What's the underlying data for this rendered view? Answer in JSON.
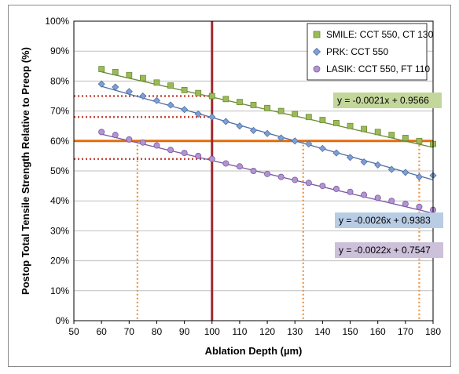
{
  "chart_data": {
    "type": "scatter",
    "xlabel": "Ablation Depth (µm)",
    "ylabel": "Postop Total Tensile Strength Relative to Preop (%)",
    "xlim": [
      50,
      180
    ],
    "ylim": [
      0,
      100
    ],
    "x_ticks": [
      "50",
      "60",
      "70",
      "80",
      "90",
      "100",
      "110",
      "120",
      "130",
      "140",
      "150",
      "160",
      "170",
      "180"
    ],
    "y_ticks": [
      "0%",
      "10%",
      "20%",
      "30%",
      "40%",
      "50%",
      "60%",
      "70%",
      "80%",
      "90%",
      "100%"
    ],
    "grid": "horizontal",
    "legend_position": "top-right",
    "series": [
      {
        "name": "SMILE: CCT 550, CT 130",
        "marker": "square",
        "color": "#9bbb59",
        "stroke": "#6b8a32",
        "x": [
          60,
          65,
          70,
          75,
          80,
          85,
          90,
          95,
          100,
          105,
          110,
          115,
          120,
          125,
          130,
          135,
          140,
          145,
          150,
          155,
          160,
          165,
          170,
          175,
          180
        ],
        "y": [
          84,
          83,
          82,
          81,
          79.5,
          78.5,
          77,
          76,
          75,
          74,
          73,
          72,
          71,
          70,
          69,
          68,
          67,
          66,
          65,
          64,
          63,
          62,
          61,
          60,
          59
        ],
        "fit": {
          "slope": -0.0021,
          "intercept": 0.9566,
          "equation": "y = -0.0021x + 0.9566",
          "eq_bg": "#c4d79b"
        }
      },
      {
        "name": "PRK: CCT 550",
        "marker": "diamond",
        "color": "#7ea1d4",
        "stroke": "#4f6fa6",
        "x": [
          60,
          65,
          70,
          75,
          80,
          85,
          90,
          95,
          100,
          105,
          110,
          115,
          120,
          125,
          130,
          135,
          140,
          145,
          150,
          155,
          160,
          165,
          170,
          175,
          180
        ],
        "y": [
          79,
          78,
          76.5,
          75,
          73.5,
          72,
          70.5,
          69,
          68,
          66.5,
          65,
          63.5,
          62.5,
          61,
          60,
          59,
          57.5,
          56,
          54.5,
          53,
          52,
          50.5,
          49.5,
          48,
          48.5
        ],
        "fit": {
          "slope": -0.0026,
          "intercept": 0.9383,
          "equation": "y = -0.0026x + 0.9383",
          "eq_bg": "#b8cce4"
        }
      },
      {
        "name": "LASIK: CCT 550, FT 110",
        "marker": "circle",
        "color": "#b194d0",
        "stroke": "#7a5aa2",
        "x": [
          60,
          65,
          70,
          75,
          80,
          85,
          90,
          95,
          100,
          105,
          110,
          115,
          120,
          125,
          130,
          135,
          140,
          145,
          150,
          155,
          160,
          165,
          170,
          175,
          180
        ],
        "y": [
          63,
          62,
          60.5,
          59.5,
          58.5,
          57,
          56,
          55,
          54,
          52.5,
          51.5,
          50,
          49,
          48,
          47,
          46,
          45,
          44,
          43,
          42,
          41,
          40,
          39,
          38,
          37
        ],
        "fit": {
          "slope": -0.0022,
          "intercept": 0.7547,
          "equation": "y = -0.0022x + 0.7547",
          "eq_bg": "#ccc0da"
        }
      }
    ],
    "reference_lines": {
      "vertical_solid_x": 100,
      "vertical_solid_color": "#a0282e",
      "horizontal_solid_y": 60,
      "horizontal_solid_color": "#e46c0a",
      "horizontal_dotted_y": [
        75,
        68,
        54
      ],
      "horizontal_dotted_color": "#c0392b",
      "vertical_dotted_x": [
        73,
        133,
        175
      ],
      "vertical_dotted_color": "#f0903a"
    }
  }
}
